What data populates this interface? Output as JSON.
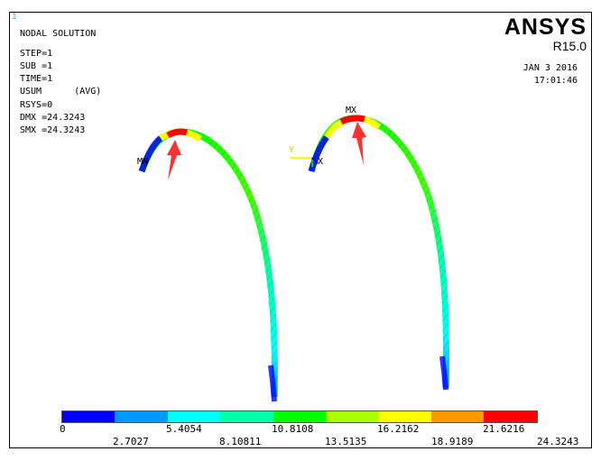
{
  "window_number": "1",
  "info_lines": {
    "title": "NODAL SOLUTION",
    "step": "STEP=1",
    "sub": "SUB =1",
    "time": "TIME=1",
    "usum": "USUM      (AVG)",
    "rsys": "RSYS=0",
    "dmx": "DMX =24.3243",
    "smx": "SMX =24.3243"
  },
  "brand": "ANSYS",
  "release": "R15.0",
  "date": "JAN  3 2016",
  "clock": "17:01:46",
  "markers": {
    "mn": "MN",
    "mx": "MX",
    "y_axis": "Y",
    "x_axis": "X"
  },
  "legend": {
    "colors": [
      "#0000ff",
      "#0099ff",
      "#00ffff",
      "#00ffaa",
      "#00ff00",
      "#aaff00",
      "#ffff00",
      "#ff9900",
      "#ff0000"
    ],
    "upper_ticks": [
      "0",
      "5.4054",
      "10.8108",
      "16.2162",
      "21.6216"
    ],
    "lower_ticks": [
      "2.7027",
      "8.10811",
      "13.5135",
      "18.9189",
      "24.3243"
    ]
  },
  "arrow_color": "#ff3030"
}
